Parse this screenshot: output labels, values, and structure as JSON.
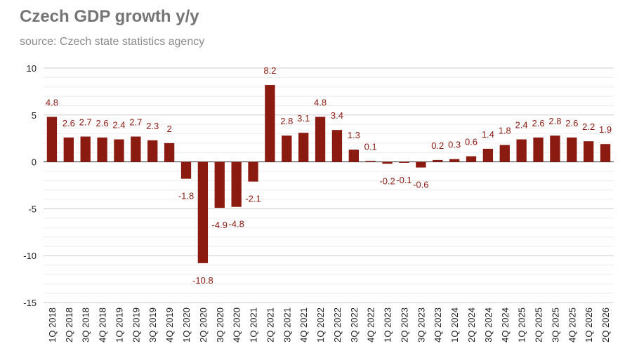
{
  "chart_data": {
    "type": "bar",
    "title": "Czech GDP growth y/y",
    "subtitle": "source: Czech state statistics agency",
    "xlabel": "",
    "ylabel": "",
    "ylim": [
      -15,
      10
    ],
    "yticks": [
      10,
      5,
      0,
      -5,
      -10,
      -15
    ],
    "ytick_labels": [
      "10",
      "5",
      "0",
      "-5",
      "-10",
      "-15"
    ],
    "grid": true,
    "legend": "none",
    "bar_color": "#8b1a10",
    "label_color": "#8b1a10",
    "categories": [
      "1Q 2018",
      "2Q 2018",
      "3Q 2018",
      "4Q 2018",
      "1Q 2019",
      "2Q 2019",
      "3Q 2019",
      "4Q 2019",
      "1Q 2020",
      "2Q 2020",
      "3Q 2020",
      "4Q 2020",
      "1Q 2021",
      "2Q 2021",
      "3Q 2021",
      "4Q 2021",
      "1Q 2022",
      "2Q 2022",
      "3Q 2022",
      "4Q 2022",
      "1Q 2023",
      "2Q 2023",
      "3Q 2023",
      "4Q 2023",
      "1Q 2024",
      "2Q 2024",
      "3Q 2024",
      "4Q 2024",
      "1Q 2025",
      "2Q 2025",
      "3Q 2025",
      "4Q 2025",
      "1Q 2026",
      "2Q 2026"
    ],
    "values": [
      4.8,
      2.6,
      2.7,
      2.6,
      2.4,
      2.7,
      2.3,
      2,
      -1.8,
      -10.8,
      -4.9,
      -4.8,
      -2.1,
      8.2,
      2.8,
      3.1,
      4.8,
      3.4,
      1.3,
      0.1,
      -0.2,
      -0.1,
      -0.6,
      0.2,
      0.3,
      0.6,
      1.4,
      1.8,
      2.4,
      2.6,
      2.8,
      2.6,
      2.2,
      1.9
    ],
    "data_labels": [
      "4.8",
      "2.6",
      "2.7",
      "2.6",
      "2.4",
      "2.7",
      "2.3",
      "2",
      "-1.8",
      "-10.8",
      "-4.9",
      "-4.8",
      "-2.1",
      "8.2",
      "2.8",
      "3.1",
      "4.8",
      "3.4",
      "1.3",
      "0.1",
      "-0.2",
      "-0.1",
      "-0.6",
      "0.2",
      "0.3",
      "0.6",
      "1.4",
      "1.8",
      "2.4",
      "2.6",
      "2.8",
      "2.6",
      "2.2",
      "1.9"
    ]
  }
}
